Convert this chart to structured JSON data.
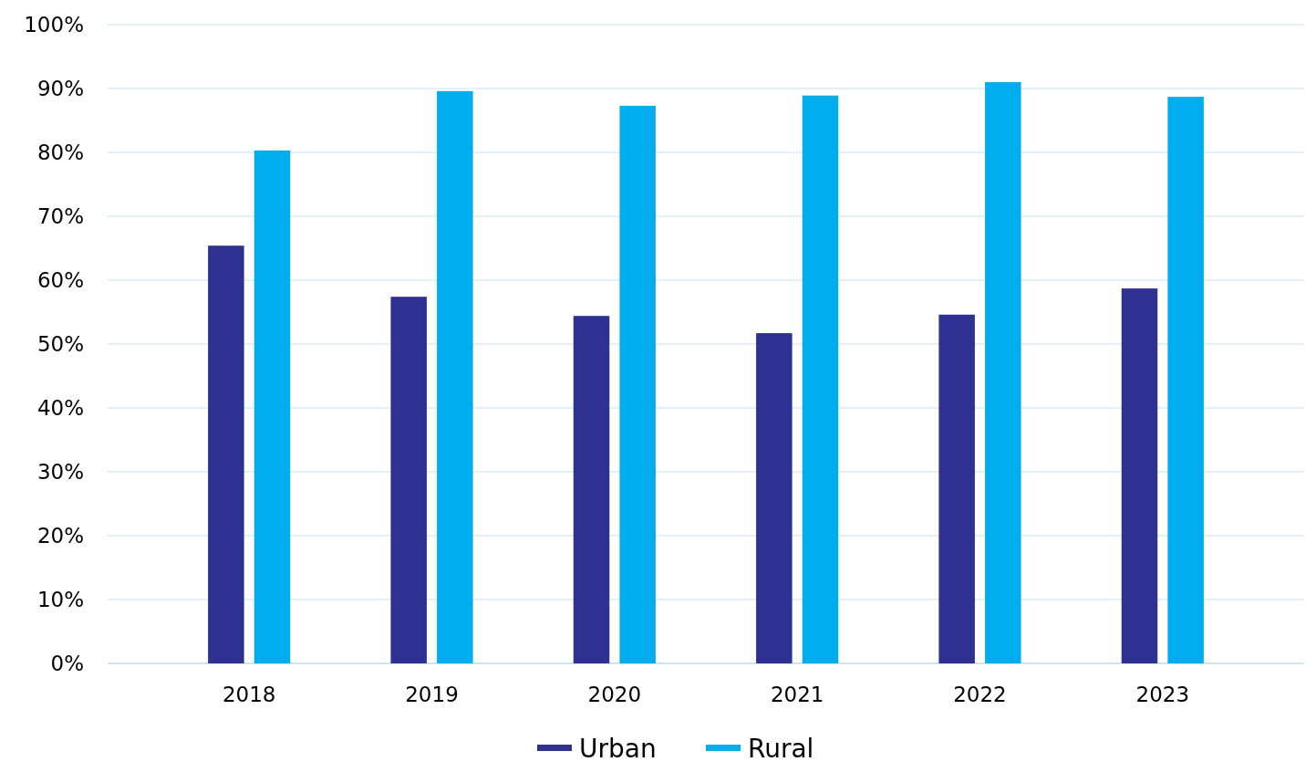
{
  "chart_data": {
    "type": "bar",
    "categories": [
      "2018",
      "2019",
      "2020",
      "2021",
      "2022",
      "2023"
    ],
    "series": [
      {
        "name": "Urban",
        "color": "#2e3192",
        "values": [
          65.4,
          57.4,
          54.4,
          51.7,
          54.6,
          58.7
        ]
      },
      {
        "name": "Rural",
        "color": "#00aeef",
        "values": [
          80.3,
          89.6,
          87.3,
          88.9,
          91.0,
          88.7
        ]
      }
    ],
    "ylim": [
      0,
      100
    ],
    "yticks": [
      {
        "value": 0,
        "label": "0%"
      },
      {
        "value": 10,
        "label": "10%"
      },
      {
        "value": 20,
        "label": "20%"
      },
      {
        "value": 30,
        "label": "30%"
      },
      {
        "value": 40,
        "label": "40%"
      },
      {
        "value": 50,
        "label": "50%"
      },
      {
        "value": 60,
        "label": "60%"
      },
      {
        "value": 70,
        "label": "70%"
      },
      {
        "value": 80,
        "label": "80%"
      },
      {
        "value": 90,
        "label": "90%"
      },
      {
        "value": 100,
        "label": "100%"
      }
    ],
    "grid": "y",
    "legend": "bottom"
  }
}
